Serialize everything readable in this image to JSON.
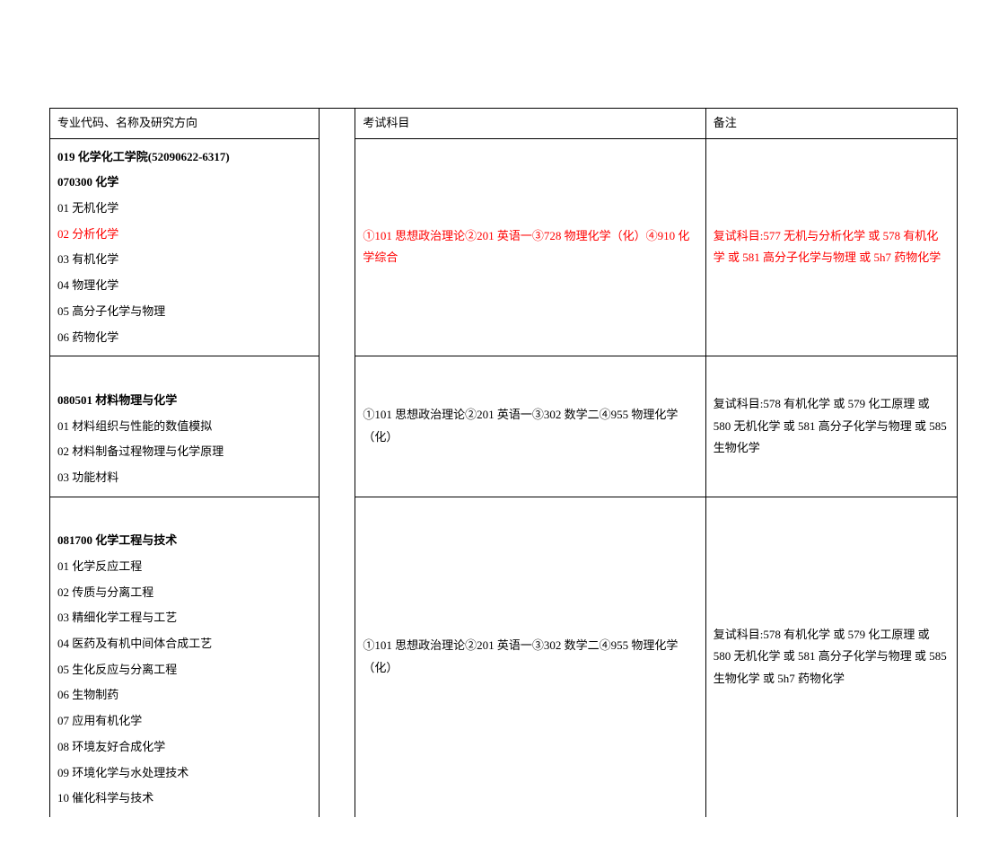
{
  "headers": {
    "col1": "专业代码、名称及研究方向",
    "col2": "",
    "col3": "考试科目",
    "col4": "备注"
  },
  "row1": {
    "major": {
      "dept": "019 化学化工学院(52090622-6317)",
      "program": "070300 化学",
      "d1": "01 无机化学",
      "d2": "02 分析化学",
      "d3": "03 有机化学",
      "d4": "04 物理化学",
      "d5": "05 高分子化学与物理",
      "d6": "06 药物化学"
    },
    "exam": "①101 思想政治理论②201 英语一③728 物理化学（化）④910 化学综合",
    "note": "复试科目:577 无机与分析化学 或 578 有机化学 或 581 高分子化学与物理 或 5h7 药物化学"
  },
  "row2": {
    "major": {
      "blank": " ",
      "program": "080501 材料物理与化学",
      "d1": "01 材料组织与性能的数值模拟",
      "d2": "02 材料制备过程物理与化学原理",
      "d3": "03 功能材料"
    },
    "exam": "①101 思想政治理论②201 英语一③302 数学二④955 物理化学（化）",
    "note": "复试科目:578 有机化学 或 579 化工原理 或 580 无机化学 或 581 高分子化学与物理 或 585 生物化学"
  },
  "row3": {
    "major": {
      "blank": " ",
      "program": "081700 化学工程与技术",
      "d1": "01 化学反应工程",
      "d2": "02 传质与分离工程",
      "d3": "03 精细化学工程与工艺",
      "d4": "04 医药及有机中间体合成工艺",
      "d5": "05 生化反应与分离工程",
      "d6": "06 生物制药",
      "d7": "07 应用有机化学",
      "d8": "08 环境友好合成化学",
      "d9": "09 环境化学与水处理技术",
      "d10": "10 催化科学与技术"
    },
    "exam": "①101 思想政治理论②201 英语一③302 数学二④955 物理化学（化）",
    "note": "复试科目:578 有机化学 或 579 化工原理 或 580 无机化学 或 581 高分子化学与物理 或 585 生物化学 或 5h7 药物化学"
  }
}
